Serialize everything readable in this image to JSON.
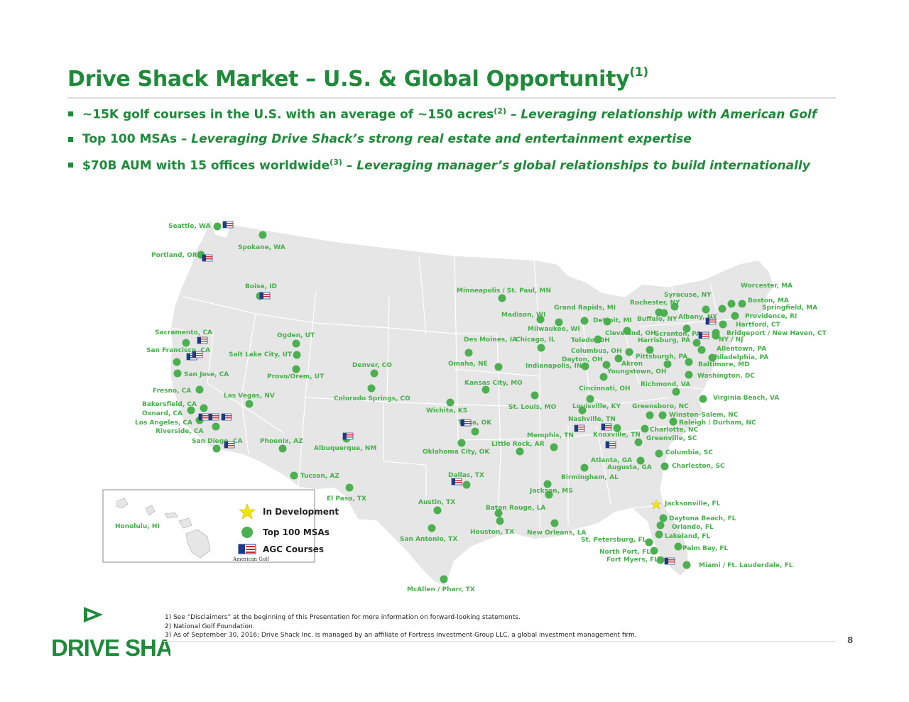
{
  "title": {
    "main": "Drive Shack Market – U.S. & Global Opportunity",
    "note": "(1)"
  },
  "bullets": [
    {
      "a": "~15K golf courses in the U.S. with an average of ~150 acres",
      "sup": "(2)",
      "b": " – ",
      "c": "Leveraging relationship with American Golf"
    },
    {
      "a": "Top 100 MSAs",
      "sup": "",
      "b": " – ",
      "c": "Leveraging Drive Shack’s strong real estate and entertainment expertise"
    },
    {
      "a": "$70B AUM with 15 offices worldwide",
      "sup": "(3)",
      "b": " –  ",
      "c": "Leveraging manager’s global relationships to build internationally"
    }
  ],
  "legend": {
    "dev": "In Development",
    "msa": "Top 100 MSAs",
    "agc": "AGC Courses"
  },
  "agc_logo_text": "American Golf",
  "hawaii_label": "Honolulu, HI",
  "footnotes": [
    "1)  See “Disclaimers” at the beginning of this Presentation for more information on forward-looking statements.",
    "2)  National Golf Foundation.",
    "3)  As of September 30, 2016; Drive Shack Inc. is managed by an affiliate of Fortress Investment Group LLC, a global investment management firm."
  ],
  "logo": "DRIVE SHACK",
  "page_number": "8",
  "colors": {
    "brand_green": "#1f8a3a",
    "marker_green": "#4caf50",
    "map_fill": "#e6e6e6",
    "star": "#f2e600"
  },
  "cities": [
    {
      "n": "Seattle, WA"
    },
    {
      "n": "Spokane, WA"
    },
    {
      "n": "Portland, OR"
    },
    {
      "n": "Boise, ID"
    },
    {
      "n": "Sacramento, CA"
    },
    {
      "n": "Ogden, UT"
    },
    {
      "n": "San Francisco, CA"
    },
    {
      "n": "Salt Lake City, UT"
    },
    {
      "n": "San Jose, CA"
    },
    {
      "n": "Provo/Orem, UT"
    },
    {
      "n": "Denver, CO"
    },
    {
      "n": "Fresno, CA"
    },
    {
      "n": "Las Vegas, NV"
    },
    {
      "n": "Colorado Springs, CO"
    },
    {
      "n": "Bakersfield, CA"
    },
    {
      "n": "Oxnard, CA"
    },
    {
      "n": "Los Angeles, CA"
    },
    {
      "n": "Riverside, CA"
    },
    {
      "n": "San Diego, CA"
    },
    {
      "n": "Phoenix, AZ"
    },
    {
      "n": "Albuquerque, NM"
    },
    {
      "n": "Tucson, AZ"
    },
    {
      "n": "El Paso, TX"
    },
    {
      "n": "Minneapolis / St. Paul, MN"
    },
    {
      "n": "Des Moines, IA"
    },
    {
      "n": "Omaha, NE"
    },
    {
      "n": "Kansas City, MO"
    },
    {
      "n": "Wichita, KS"
    },
    {
      "n": "Tulsa, OK"
    },
    {
      "n": "Oklahoma City, OK"
    },
    {
      "n": "Dallas, TX"
    },
    {
      "n": "Austin, TX"
    },
    {
      "n": "San Antonio, TX"
    },
    {
      "n": "Houston, TX"
    },
    {
      "n": "McAllen / Pharr, TX"
    },
    {
      "n": "Madison, WI"
    },
    {
      "n": "Milwaukee, WI"
    },
    {
      "n": "Chicago, IL"
    },
    {
      "n": "Grand Rapids, MI"
    },
    {
      "n": "Detroit, MI"
    },
    {
      "n": "Toledo, OH"
    },
    {
      "n": "Indianapolis, IN"
    },
    {
      "n": "Cleveland, OH"
    },
    {
      "n": "Columbus, OH"
    },
    {
      "n": "Dayton, OH"
    },
    {
      "n": "Akron"
    },
    {
      "n": "Youngstown, OH"
    },
    {
      "n": "Cincinnati, OH"
    },
    {
      "n": "St. Louis, MO"
    },
    {
      "n": "Louisville, KY"
    },
    {
      "n": "Nashville, TN"
    },
    {
      "n": "Memphis, TN"
    },
    {
      "n": "Knoxville, TN"
    },
    {
      "n": "Little Rock, AR"
    },
    {
      "n": "Birmingham, AL"
    },
    {
      "n": "Jackson, MS"
    },
    {
      "n": "Baton Rouge, LA"
    },
    {
      "n": "New Orleans, LA"
    },
    {
      "n": "Atlanta, GA"
    },
    {
      "n": "Augusta, GA"
    },
    {
      "n": "Columbia, SC"
    },
    {
      "n": "Charleston, SC"
    },
    {
      "n": "Greenville, SC"
    },
    {
      "n": "Charlotte, NC"
    },
    {
      "n": "Greensboro, NC"
    },
    {
      "n": "Winston-Salem, NC"
    },
    {
      "n": "Raleigh / Durham, NC"
    },
    {
      "n": "Richmond, VA"
    },
    {
      "n": "Virginia Beach, VA"
    },
    {
      "n": "Washington, DC"
    },
    {
      "n": "Baltimore, MD"
    },
    {
      "n": "Pittsburgh, PA"
    },
    {
      "n": "Harrisburg, PA"
    },
    {
      "n": "Scranton, PA"
    },
    {
      "n": "Allentown, PA"
    },
    {
      "n": "Philadelphia, PA"
    },
    {
      "n": "NY / NJ"
    },
    {
      "n": "Bridgeport / New Haven, CT"
    },
    {
      "n": "Hartford, CT"
    },
    {
      "n": "Providence, RI"
    },
    {
      "n": "Springfield, MA"
    },
    {
      "n": "Boston, MA"
    },
    {
      "n": "Worcester, MA"
    },
    {
      "n": "Syracuse, NY"
    },
    {
      "n": "Rochester, NY"
    },
    {
      "n": "Buffalo, NY"
    },
    {
      "n": "Albany, NY"
    },
    {
      "n": "Jacksonville, FL"
    },
    {
      "n": "Daytona Beach, FL"
    },
    {
      "n": "Orlando, FL"
    },
    {
      "n": "Lakeland, FL"
    },
    {
      "n": "St. Petersburg, FL"
    },
    {
      "n": "Palm Bay, FL"
    },
    {
      "n": "North Port, FL"
    },
    {
      "n": "Fort Myers, FL"
    },
    {
      "n": "Miami / Ft. Lauderdale, FL"
    }
  ]
}
